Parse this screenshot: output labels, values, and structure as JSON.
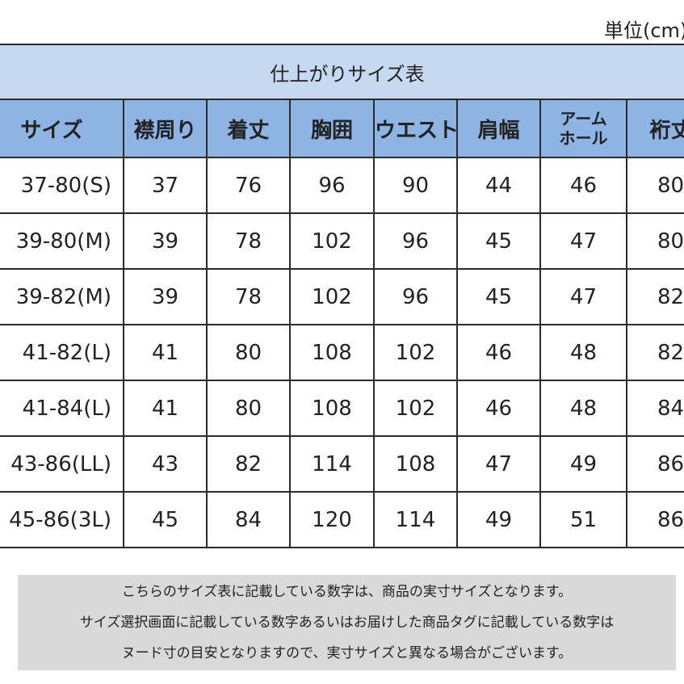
{
  "unit_label": "単位(cm)",
  "table": {
    "title": "仕上がりサイズ表",
    "headers": [
      "サイズ",
      "襟周り",
      "着丈",
      "胸囲",
      "ウエスト",
      "肩幅",
      "アーム ホール",
      "裄丈"
    ],
    "rows": [
      [
        "37-80(S)",
        "37",
        "76",
        "96",
        "90",
        "44",
        "46",
        "80"
      ],
      [
        "39-80(M)",
        "39",
        "78",
        "102",
        "96",
        "45",
        "47",
        "80"
      ],
      [
        "39-82(M)",
        "39",
        "78",
        "102",
        "96",
        "45",
        "47",
        "82"
      ],
      [
        "41-82(L)",
        "41",
        "80",
        "108",
        "102",
        "46",
        "48",
        "82"
      ],
      [
        "41-84(L)",
        "41",
        "80",
        "108",
        "102",
        "46",
        "48",
        "84"
      ],
      [
        "43-86(LL)",
        "43",
        "82",
        "114",
        "108",
        "47",
        "49",
        "86"
      ],
      [
        "45-86(3L)",
        "45",
        "84",
        "120",
        "114",
        "49",
        "51",
        "86"
      ]
    ]
  },
  "note": {
    "lines": [
      "こちらのサイズ表に記載している数字は、商品の実寸サイズとなります。",
      "サイズ選択画面に記載している数字あるいはお届けした商品タグに記載している数字は",
      "ヌード寸の目安となりますので、実寸サイズと異なる場合がございます。"
    ]
  },
  "colors": {
    "title_bg": "#c6d9f0",
    "header_bg": "#8eb4e3",
    "note_bg": "#d9d9d9"
  }
}
